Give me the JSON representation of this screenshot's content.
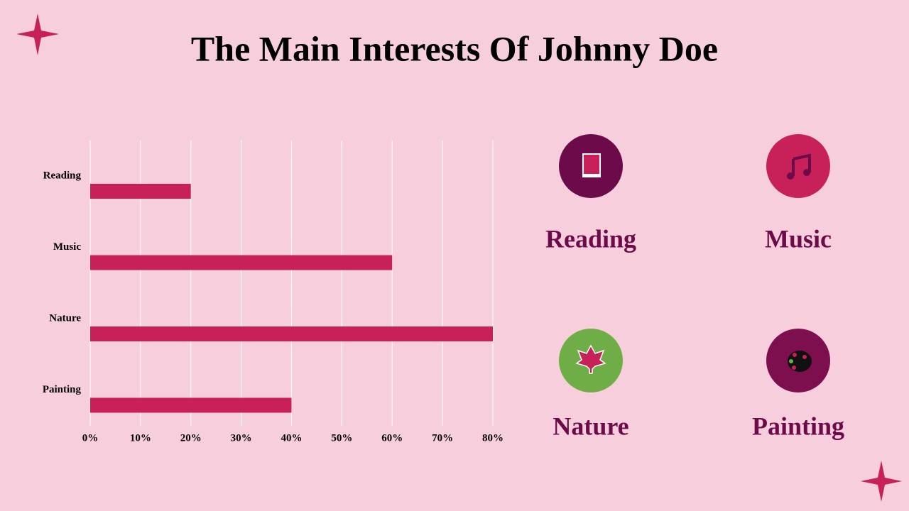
{
  "chart_data": {
    "type": "hbar",
    "title": "The Main Interests Of Johnny Doe",
    "categories": [
      "Reading",
      "Music",
      "Nature",
      "Painting"
    ],
    "values": [
      20,
      60,
      80,
      40
    ],
    "color": "#c8215a",
    "xlim": [
      0,
      80
    ],
    "xticks": [
      {
        "value": 0,
        "label": "0%"
      },
      {
        "value": 10,
        "label": "10%"
      },
      {
        "value": 20,
        "label": "20%"
      },
      {
        "value": 30,
        "label": "30%"
      },
      {
        "value": 40,
        "label": "40%"
      },
      {
        "value": 50,
        "label": "50%"
      },
      {
        "value": 60,
        "label": "60%"
      },
      {
        "value": 70,
        "label": "70%"
      },
      {
        "value": 80,
        "label": "80%"
      }
    ],
    "grid": true
  },
  "interests": [
    "Reading",
    "Music",
    "Nature",
    "Painting"
  ]
}
